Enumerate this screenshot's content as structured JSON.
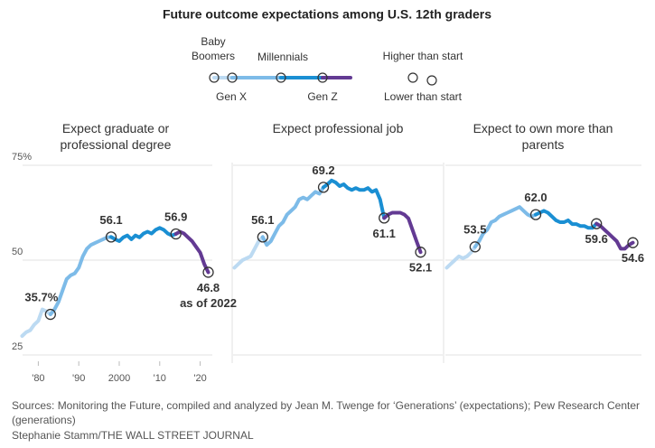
{
  "title": "Future outcome expectations among U.S. 12th graders",
  "legend": {
    "series": [
      {
        "name": "Baby Boomers",
        "color": "#bcdaf2"
      },
      {
        "name": "Gen X",
        "color": "#7dbbe8"
      },
      {
        "name": "Millennials",
        "color": "#1a8fd3"
      },
      {
        "name": "Gen Z",
        "color": "#633a93"
      }
    ],
    "higher": "Higher than start",
    "lower": "Lower than start"
  },
  "chart_data": [
    {
      "type": "line",
      "title": "Expect graduate or professional degree",
      "x": [
        1976,
        1977,
        1978,
        1979,
        1980,
        1981,
        1982,
        1983,
        1984,
        1985,
        1986,
        1987,
        1988,
        1989,
        1990,
        1991,
        1992,
        1993,
        1994,
        1995,
        1996,
        1997,
        1998,
        1999,
        2000,
        2001,
        2002,
        2003,
        2004,
        2005,
        2006,
        2007,
        2008,
        2009,
        2010,
        2011,
        2012,
        2013,
        2014,
        2015,
        2016,
        2017,
        2018,
        2019,
        2020,
        2021,
        2022
      ],
      "xlim": [
        1975,
        2023
      ],
      "xticks": [
        {
          "value": 1980,
          "label": "'80"
        },
        {
          "value": 1990,
          "label": "'90"
        },
        2000,
        {
          "value": 2010,
          "label": "'10"
        },
        {
          "value": 2020,
          "label": "'20"
        }
      ],
      "ylim": [
        25,
        75
      ],
      "yticks": [
        {
          "value": 75,
          "label": "75%"
        },
        50,
        25
      ],
      "grid": true,
      "series": [
        {
          "color": "#bcdaf2",
          "values": [
            30,
            31,
            31.5,
            33,
            34,
            37,
            36.5,
            35.7,
            null,
            null,
            null,
            null,
            null,
            null,
            null,
            null,
            null,
            null,
            null,
            null,
            null,
            null,
            null,
            null,
            null,
            null,
            null,
            null,
            null,
            null,
            null,
            null,
            null,
            null,
            null,
            null,
            null,
            null,
            null,
            null,
            null,
            null,
            null,
            null,
            null,
            null,
            null
          ]
        },
        {
          "color": "#7dbbe8",
          "values": [
            null,
            null,
            null,
            null,
            null,
            null,
            null,
            35.7,
            37,
            39,
            42,
            45,
            46,
            46.5,
            48,
            51,
            53,
            54,
            54.5,
            55,
            55.5,
            56,
            56.1,
            null,
            null,
            null,
            null,
            null,
            null,
            null,
            null,
            null,
            null,
            null,
            null,
            null,
            null,
            null,
            null,
            null,
            null,
            null,
            null,
            null,
            null,
            null,
            null
          ]
        },
        {
          "color": "#1a8fd3",
          "values": [
            null,
            null,
            null,
            null,
            null,
            null,
            null,
            null,
            null,
            null,
            null,
            null,
            null,
            null,
            null,
            null,
            null,
            null,
            null,
            null,
            null,
            null,
            56.1,
            55.5,
            55,
            56,
            56.5,
            55.5,
            56.5,
            56,
            57,
            57.5,
            57,
            58,
            58.5,
            58,
            57,
            56.5,
            56.9,
            null,
            null,
            null,
            null,
            null,
            null,
            null,
            null
          ]
        },
        {
          "color": "#633a93",
          "values": [
            null,
            null,
            null,
            null,
            null,
            null,
            null,
            null,
            null,
            null,
            null,
            null,
            null,
            null,
            null,
            null,
            null,
            null,
            null,
            null,
            null,
            null,
            null,
            null,
            null,
            null,
            null,
            null,
            null,
            null,
            null,
            null,
            null,
            null,
            null,
            null,
            null,
            null,
            56.9,
            57.5,
            57,
            56,
            55,
            53.5,
            52,
            49,
            46.8
          ]
        }
      ],
      "annotations": [
        {
          "x": 1983,
          "value": 35.7,
          "label": "35.7%",
          "position": "above"
        },
        {
          "x": 1998,
          "value": 56.1,
          "position": "above"
        },
        {
          "x": 2014,
          "value": 56.9,
          "position": "above"
        },
        {
          "x": 2022,
          "value": 46.8,
          "note": "as of 2022",
          "position": "below"
        }
      ]
    },
    {
      "type": "line",
      "title": "Expect professional job",
      "x": [
        1976,
        1977,
        1978,
        1979,
        1980,
        1981,
        1982,
        1983,
        1984,
        1985,
        1986,
        1987,
        1988,
        1989,
        1990,
        1991,
        1992,
        1993,
        1994,
        1995,
        1996,
        1997,
        1998,
        1999,
        2000,
        2001,
        2002,
        2003,
        2004,
        2005,
        2006,
        2007,
        2008,
        2009,
        2010,
        2011,
        2012,
        2013,
        2014,
        2015,
        2016,
        2017,
        2018,
        2019,
        2020,
        2021,
        2022
      ],
      "xlim": [
        1975,
        2023
      ],
      "ylim": [
        25,
        75
      ],
      "grid": true,
      "series": [
        {
          "color": "#bcdaf2",
          "values": [
            48,
            49,
            50,
            50.5,
            51,
            53,
            55,
            56.1,
            null,
            null,
            null,
            null,
            null,
            null,
            null,
            null,
            null,
            null,
            null,
            null,
            null,
            null,
            null,
            null,
            null,
            null,
            null,
            null,
            null,
            null,
            null,
            null,
            null,
            null,
            null,
            null,
            null,
            null,
            null,
            null,
            null,
            null,
            null,
            null,
            null,
            null,
            null
          ]
        },
        {
          "color": "#7dbbe8",
          "values": [
            null,
            null,
            null,
            null,
            null,
            null,
            null,
            56.1,
            54,
            55,
            57,
            59,
            60,
            62,
            63,
            64,
            66,
            66.5,
            66,
            67,
            68,
            67.5,
            69.2,
            null,
            null,
            null,
            null,
            null,
            null,
            null,
            null,
            null,
            null,
            null,
            null,
            null,
            null,
            null,
            null,
            null,
            null,
            null,
            null,
            null,
            null,
            null,
            null
          ]
        },
        {
          "color": "#1a8fd3",
          "values": [
            null,
            null,
            null,
            null,
            null,
            null,
            null,
            null,
            null,
            null,
            null,
            null,
            null,
            null,
            null,
            null,
            null,
            null,
            null,
            null,
            null,
            null,
            69.2,
            70,
            71,
            70.5,
            69.5,
            70,
            69,
            68.5,
            69,
            68.5,
            68.5,
            69,
            68,
            68.5,
            66,
            61.1,
            null,
            null,
            null,
            null,
            null,
            null,
            null,
            null,
            null
          ]
        },
        {
          "color": "#633a93",
          "values": [
            null,
            null,
            null,
            null,
            null,
            null,
            null,
            null,
            null,
            null,
            null,
            null,
            null,
            null,
            null,
            null,
            null,
            null,
            null,
            null,
            null,
            null,
            null,
            null,
            null,
            null,
            null,
            null,
            null,
            null,
            null,
            null,
            null,
            null,
            null,
            null,
            null,
            61.1,
            62,
            62.5,
            62.5,
            62.5,
            62,
            61,
            58,
            55,
            52.1
          ]
        }
      ],
      "annotations": [
        {
          "x": 1983,
          "value": 56.1,
          "position": "above"
        },
        {
          "x": 1998,
          "value": 69.2,
          "position": "above"
        },
        {
          "x": 2013,
          "value": 61.1,
          "position": "below"
        },
        {
          "x": 2022,
          "value": 52.1,
          "position": "below"
        }
      ]
    },
    {
      "type": "line",
      "title": "Expect to own more than parents",
      "x": [
        1976,
        1977,
        1978,
        1979,
        1980,
        1981,
        1982,
        1983,
        1984,
        1985,
        1986,
        1987,
        1988,
        1989,
        1990,
        1991,
        1992,
        1993,
        1994,
        1995,
        1996,
        1997,
        1998,
        1999,
        2000,
        2001,
        2002,
        2003,
        2004,
        2005,
        2006,
        2007,
        2008,
        2009,
        2010,
        2011,
        2012,
        2013,
        2014,
        2015,
        2016,
        2017,
        2018,
        2019,
        2020,
        2021,
        2022
      ],
      "xlim": [
        1975,
        2023
      ],
      "ylim": [
        25,
        75
      ],
      "grid": true,
      "series": [
        {
          "color": "#bcdaf2",
          "values": [
            48,
            49,
            50,
            51,
            50.5,
            51,
            52,
            53.5,
            null,
            null,
            null,
            null,
            null,
            null,
            null,
            null,
            null,
            null,
            null,
            null,
            null,
            null,
            null,
            null,
            null,
            null,
            null,
            null,
            null,
            null,
            null,
            null,
            null,
            null,
            null,
            null,
            null,
            null,
            null,
            null,
            null,
            null,
            null,
            null,
            null,
            null,
            null
          ]
        },
        {
          "color": "#7dbbe8",
          "values": [
            null,
            null,
            null,
            null,
            null,
            null,
            null,
            53.5,
            55,
            57,
            58,
            60,
            60.5,
            61.5,
            62,
            62.5,
            63,
            63.5,
            64,
            63,
            62,
            61.5,
            62.0,
            null,
            null,
            null,
            null,
            null,
            null,
            null,
            null,
            null,
            null,
            null,
            null,
            null,
            null,
            null,
            null,
            null,
            null,
            null,
            null,
            null,
            null,
            null,
            null
          ]
        },
        {
          "color": "#1a8fd3",
          "values": [
            null,
            null,
            null,
            null,
            null,
            null,
            null,
            null,
            null,
            null,
            null,
            null,
            null,
            null,
            null,
            null,
            null,
            null,
            null,
            null,
            null,
            null,
            62.0,
            62.5,
            63,
            62.5,
            61.5,
            60.5,
            60,
            60,
            60.5,
            59.5,
            59.5,
            59,
            59,
            58.5,
            58.5,
            59.6,
            null,
            null,
            null,
            null,
            null,
            null,
            null,
            null,
            null
          ]
        },
        {
          "color": "#633a93",
          "values": [
            null,
            null,
            null,
            null,
            null,
            null,
            null,
            null,
            null,
            null,
            null,
            null,
            null,
            null,
            null,
            null,
            null,
            null,
            null,
            null,
            null,
            null,
            null,
            null,
            null,
            null,
            null,
            null,
            null,
            null,
            null,
            null,
            null,
            null,
            null,
            null,
            null,
            59.6,
            59,
            58,
            57,
            56,
            55,
            53,
            53,
            54,
            54.6
          ]
        }
      ],
      "annotations": [
        {
          "x": 1983,
          "value": 53.5,
          "position": "above"
        },
        {
          "x": 1998,
          "value": 62.0,
          "label": "62.0",
          "position": "above"
        },
        {
          "x": 2013,
          "value": 59.6,
          "position": "below"
        },
        {
          "x": 2022,
          "value": 54.6,
          "position": "below"
        }
      ]
    }
  ],
  "source": "Sources: Monitoring the Future, compiled and analyzed by Jean M. Twenge for  ‘Generations’ (expectations); Pew Research Center (generations)",
  "credit": "Stephanie Stamm/THE WALL STREET JOURNAL"
}
